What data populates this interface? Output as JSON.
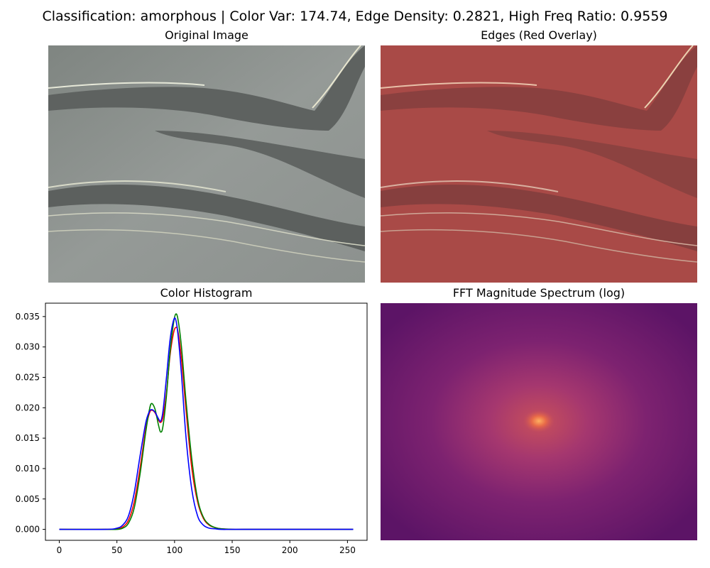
{
  "figure": {
    "suptitle": "Classification: amorphous | Color Var: 174.74, Edge Density: 0.2821, High Freq Ratio: 0.9559"
  },
  "panels": {
    "original": {
      "title": "Original Image"
    },
    "edges": {
      "title": "Edges (Red Overlay)"
    },
    "histogram": {
      "title": "Color Histogram"
    },
    "fft": {
      "title": "FFT Magnitude Spectrum (log)"
    }
  },
  "colors": {
    "red_series": "#ff0000",
    "green_series": "#008000",
    "blue_series": "#0000ff",
    "micro_bg": "#8a8f8c",
    "micro_dark": "#5a5d5c",
    "edge_overlay": "#b03a38",
    "fft_bg": "#5d1467",
    "fft_glow": "#a03470",
    "fft_center": "#f08040"
  },
  "chart_data": {
    "type": "line",
    "title": "Color Histogram",
    "xlabel": "",
    "ylabel": "",
    "xlim": [
      -12,
      267
    ],
    "ylim": [
      -0.0018,
      0.0372
    ],
    "x_ticks": [
      0,
      50,
      100,
      150,
      200,
      250
    ],
    "y_ticks": [
      0.0,
      0.005,
      0.01,
      0.015,
      0.02,
      0.025,
      0.03,
      0.035
    ],
    "y_tick_labels": [
      "0.000",
      "0.005",
      "0.010",
      "0.015",
      "0.020",
      "0.025",
      "0.030",
      "0.035"
    ],
    "x": [
      0,
      40,
      50,
      55,
      60,
      65,
      70,
      75,
      78,
      80,
      83,
      86,
      88,
      90,
      93,
      96,
      99,
      101,
      103,
      106,
      110,
      115,
      120,
      125,
      130,
      135,
      140,
      150,
      160,
      200,
      255
    ],
    "series": [
      {
        "color": "red",
        "values": [
          0,
          0,
          0.0001,
          0.0004,
          0.0015,
          0.0045,
          0.01,
          0.0165,
          0.019,
          0.0196,
          0.0192,
          0.018,
          0.0176,
          0.0185,
          0.0225,
          0.0285,
          0.0322,
          0.0332,
          0.0325,
          0.028,
          0.0195,
          0.01,
          0.0045,
          0.0018,
          0.0007,
          0.0003,
          0.0001,
          0,
          0,
          0,
          0
        ]
      },
      {
        "color": "green",
        "values": [
          0,
          0,
          0.0,
          0.0002,
          0.001,
          0.0035,
          0.009,
          0.016,
          0.0195,
          0.0207,
          0.0198,
          0.0172,
          0.016,
          0.017,
          0.022,
          0.029,
          0.0338,
          0.0354,
          0.0345,
          0.03,
          0.021,
          0.0115,
          0.005,
          0.002,
          0.0008,
          0.0003,
          0.0001,
          0,
          0,
          0,
          0
        ]
      },
      {
        "color": "blue",
        "values": [
          0,
          0,
          0.0002,
          0.0007,
          0.0022,
          0.006,
          0.012,
          0.0175,
          0.0193,
          0.0197,
          0.0193,
          0.0182,
          0.0178,
          0.0195,
          0.025,
          0.031,
          0.0343,
          0.0345,
          0.032,
          0.0255,
          0.015,
          0.0065,
          0.0022,
          0.0007,
          0.0002,
          0.0001,
          0,
          0,
          0,
          0,
          0
        ]
      }
    ]
  }
}
